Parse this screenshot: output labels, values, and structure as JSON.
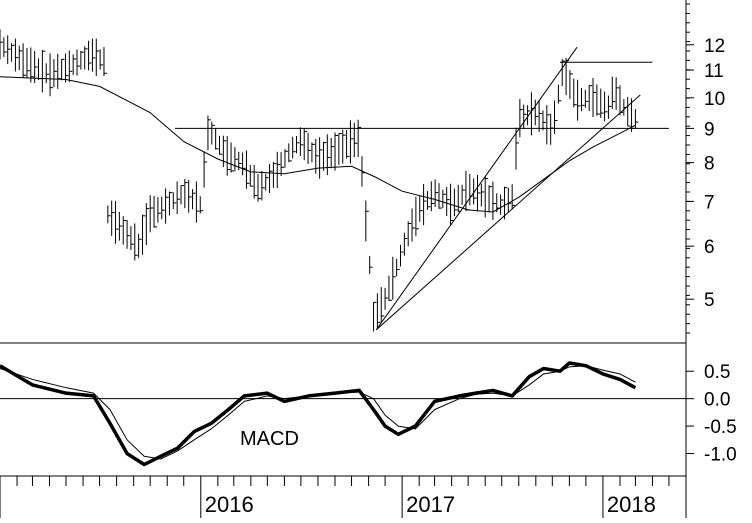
{
  "chart_data": [
    {
      "type": "ohlc",
      "panel": "price",
      "scale": "log",
      "ylim": [
        4.3,
        14.0
      ],
      "y_ticks": [
        "12",
        "11",
        "10",
        "9",
        "8",
        "7",
        "6",
        "5"
      ],
      "y_tick_values": [
        12,
        11,
        10,
        9,
        8,
        7,
        6,
        5
      ],
      "moving_average": [
        [
          "2015-01-01",
          10.75
        ],
        [
          "2015-03-01",
          10.7
        ],
        [
          "2015-05-01",
          10.65
        ],
        [
          "2015-07-01",
          10.4
        ],
        [
          "2015-08-15",
          9.95
        ],
        [
          "2015-10-01",
          9.5
        ],
        [
          "2015-12-01",
          8.6
        ],
        [
          "2016-02-01",
          8.1
        ],
        [
          "2016-04-01",
          7.75
        ],
        [
          "2016-06-01",
          7.7
        ],
        [
          "2016-08-01",
          7.85
        ],
        [
          "2016-10-01",
          7.9
        ],
        [
          "2016-11-15",
          7.6
        ],
        [
          "2017-01-01",
          7.25
        ],
        [
          "2017-03-01",
          7.05
        ],
        [
          "2017-05-01",
          6.8
        ],
        [
          "2017-06-15",
          6.75
        ],
        [
          "2017-08-01",
          7.1
        ],
        [
          "2017-09-15",
          7.55
        ],
        [
          "2017-11-01",
          8.05
        ],
        [
          "2017-12-15",
          8.45
        ],
        [
          "2018-02-01",
          8.85
        ],
        [
          "2018-03-01",
          9.1
        ]
      ],
      "price_points": [
        [
          "2015-01-01",
          12.0
        ],
        [
          "2015-02-15",
          11.3
        ],
        [
          "2015-04-01",
          10.8
        ],
        [
          "2015-05-15",
          11.2
        ],
        [
          "2015-06-15",
          11.6
        ],
        [
          "2015-07-10",
          11.3
        ],
        [
          "2015-07-15",
          6.7
        ],
        [
          "2015-08-15",
          6.3
        ],
        [
          "2015-09-10",
          6.0
        ],
        [
          "2015-10-01",
          6.7
        ],
        [
          "2015-11-01",
          6.9
        ],
        [
          "2015-12-01",
          7.2
        ],
        [
          "2016-01-01",
          6.9
        ],
        [
          "2016-01-15",
          9.0
        ],
        [
          "2016-02-15",
          8.2
        ],
        [
          "2016-03-15",
          8.0
        ],
        [
          "2016-04-15",
          7.3
        ],
        [
          "2016-05-15",
          7.7
        ],
        [
          "2016-06-15",
          8.4
        ],
        [
          "2016-07-01",
          8.6
        ],
        [
          "2016-08-01",
          8.1
        ],
        [
          "2016-09-01",
          8.3
        ],
        [
          "2016-10-01",
          8.6
        ],
        [
          "2016-10-15",
          8.7
        ],
        [
          "2016-10-25",
          6.8
        ],
        [
          "2016-11-10",
          4.7
        ],
        [
          "2016-12-01",
          5.0
        ],
        [
          "2016-12-20",
          5.5
        ],
        [
          "2017-01-10",
          6.2
        ],
        [
          "2017-02-01",
          6.8
        ],
        [
          "2017-03-01",
          7.2
        ],
        [
          "2017-04-01",
          6.9
        ],
        [
          "2017-05-01",
          7.3
        ],
        [
          "2017-06-01",
          7.1
        ],
        [
          "2017-07-01",
          6.9
        ],
        [
          "2017-07-20",
          7.1
        ],
        [
          "2017-08-01",
          9.3
        ],
        [
          "2017-09-01",
          9.5
        ],
        [
          "2017-10-01",
          8.9
        ],
        [
          "2017-10-20",
          11.0
        ],
        [
          "2017-11-15",
          9.9
        ],
        [
          "2017-12-15",
          10.0
        ],
        [
          "2018-01-10",
          9.6
        ],
        [
          "2018-01-20",
          10.3
        ],
        [
          "2018-02-10",
          9.6
        ],
        [
          "2018-03-01",
          9.3
        ]
      ],
      "horizontal_lines": [
        {
          "value": 9.0,
          "from": "2015-11-15",
          "to": "2018-05-01"
        },
        {
          "value": 11.3,
          "from": "2017-10-15",
          "to": "2018-04-01"
        }
      ],
      "trend_lines": [
        {
          "from": [
            "2016-11-15",
            4.5
          ],
          "to": [
            "2017-11-15",
            11.9
          ]
        },
        {
          "from": [
            "2016-11-15",
            4.5
          ],
          "to": [
            "2018-03-10",
            10.1
          ]
        }
      ]
    },
    {
      "type": "line",
      "panel": "macd",
      "annotation": "MACD",
      "ylim": [
        -1.3,
        0.85
      ],
      "y_ticks": [
        "0.5",
        "0.0",
        "-0.5",
        "-1.0"
      ],
      "y_tick_values": [
        0.5,
        0.0,
        -0.5,
        -1.0
      ],
      "zero_line": 0.0,
      "series": [
        {
          "style": "thick",
          "points": [
            [
              "2015-01-01",
              0.6
            ],
            [
              "2015-03-01",
              0.25
            ],
            [
              "2015-05-01",
              0.1
            ],
            [
              "2015-06-20",
              0.05
            ],
            [
              "2015-07-20",
              -0.45
            ],
            [
              "2015-08-20",
              -1.0
            ],
            [
              "2015-09-20",
              -1.2
            ],
            [
              "2015-10-20",
              -1.05
            ],
            [
              "2015-11-20",
              -0.9
            ],
            [
              "2015-12-20",
              -0.6
            ],
            [
              "2016-01-20",
              -0.45
            ],
            [
              "2016-02-20",
              -0.2
            ],
            [
              "2016-03-20",
              0.05
            ],
            [
              "2016-05-01",
              0.1
            ],
            [
              "2016-06-01",
              -0.05
            ],
            [
              "2016-07-15",
              0.05
            ],
            [
              "2016-09-01",
              0.1
            ],
            [
              "2016-10-15",
              0.15
            ],
            [
              "2016-11-10",
              -0.2
            ],
            [
              "2016-12-01",
              -0.5
            ],
            [
              "2016-12-25",
              -0.65
            ],
            [
              "2017-01-25",
              -0.5
            ],
            [
              "2017-03-01",
              -0.05
            ],
            [
              "2017-04-15",
              0.05
            ],
            [
              "2017-05-15",
              0.1
            ],
            [
              "2017-06-15",
              0.15
            ],
            [
              "2017-07-20",
              0.05
            ],
            [
              "2017-08-20",
              0.4
            ],
            [
              "2017-09-15",
              0.55
            ],
            [
              "2017-10-15",
              0.5
            ],
            [
              "2017-11-01",
              0.65
            ],
            [
              "2017-12-01",
              0.6
            ],
            [
              "2018-01-01",
              0.45
            ],
            [
              "2018-02-01",
              0.35
            ],
            [
              "2018-03-01",
              0.2
            ]
          ]
        },
        {
          "style": "thin",
          "points": [
            [
              "2015-01-01",
              0.55
            ],
            [
              "2015-03-01",
              0.35
            ],
            [
              "2015-05-01",
              0.2
            ],
            [
              "2015-06-20",
              0.1
            ],
            [
              "2015-07-20",
              -0.2
            ],
            [
              "2015-08-20",
              -0.75
            ],
            [
              "2015-09-20",
              -1.05
            ],
            [
              "2015-10-20",
              -1.1
            ],
            [
              "2015-11-20",
              -0.95
            ],
            [
              "2015-12-20",
              -0.75
            ],
            [
              "2016-01-20",
              -0.55
            ],
            [
              "2016-02-20",
              -0.3
            ],
            [
              "2016-03-20",
              -0.05
            ],
            [
              "2016-05-01",
              0.05
            ],
            [
              "2016-06-01",
              0.0
            ],
            [
              "2016-07-15",
              0.05
            ],
            [
              "2016-09-01",
              0.1
            ],
            [
              "2016-10-15",
              0.12
            ],
            [
              "2016-11-10",
              0.0
            ],
            [
              "2016-12-01",
              -0.3
            ],
            [
              "2016-12-25",
              -0.5
            ],
            [
              "2017-01-25",
              -0.55
            ],
            [
              "2017-03-01",
              -0.2
            ],
            [
              "2017-04-15",
              0.0
            ],
            [
              "2017-05-15",
              0.08
            ],
            [
              "2017-06-15",
              0.1
            ],
            [
              "2017-07-20",
              0.05
            ],
            [
              "2017-08-20",
              0.25
            ],
            [
              "2017-09-15",
              0.45
            ],
            [
              "2017-10-15",
              0.5
            ],
            [
              "2017-11-01",
              0.58
            ],
            [
              "2017-12-01",
              0.6
            ],
            [
              "2018-01-01",
              0.52
            ],
            [
              "2018-02-01",
              0.45
            ],
            [
              "2018-03-01",
              0.3
            ]
          ]
        }
      ]
    }
  ],
  "x_axis": {
    "labels": [
      {
        "text": "2016",
        "date": "2016-01-01"
      },
      {
        "text": "2017",
        "date": "2017-01-01"
      },
      {
        "text": "2018",
        "date": "2018-01-01"
      }
    ],
    "range": [
      "2015-01-01",
      "2018-06-01"
    ]
  }
}
